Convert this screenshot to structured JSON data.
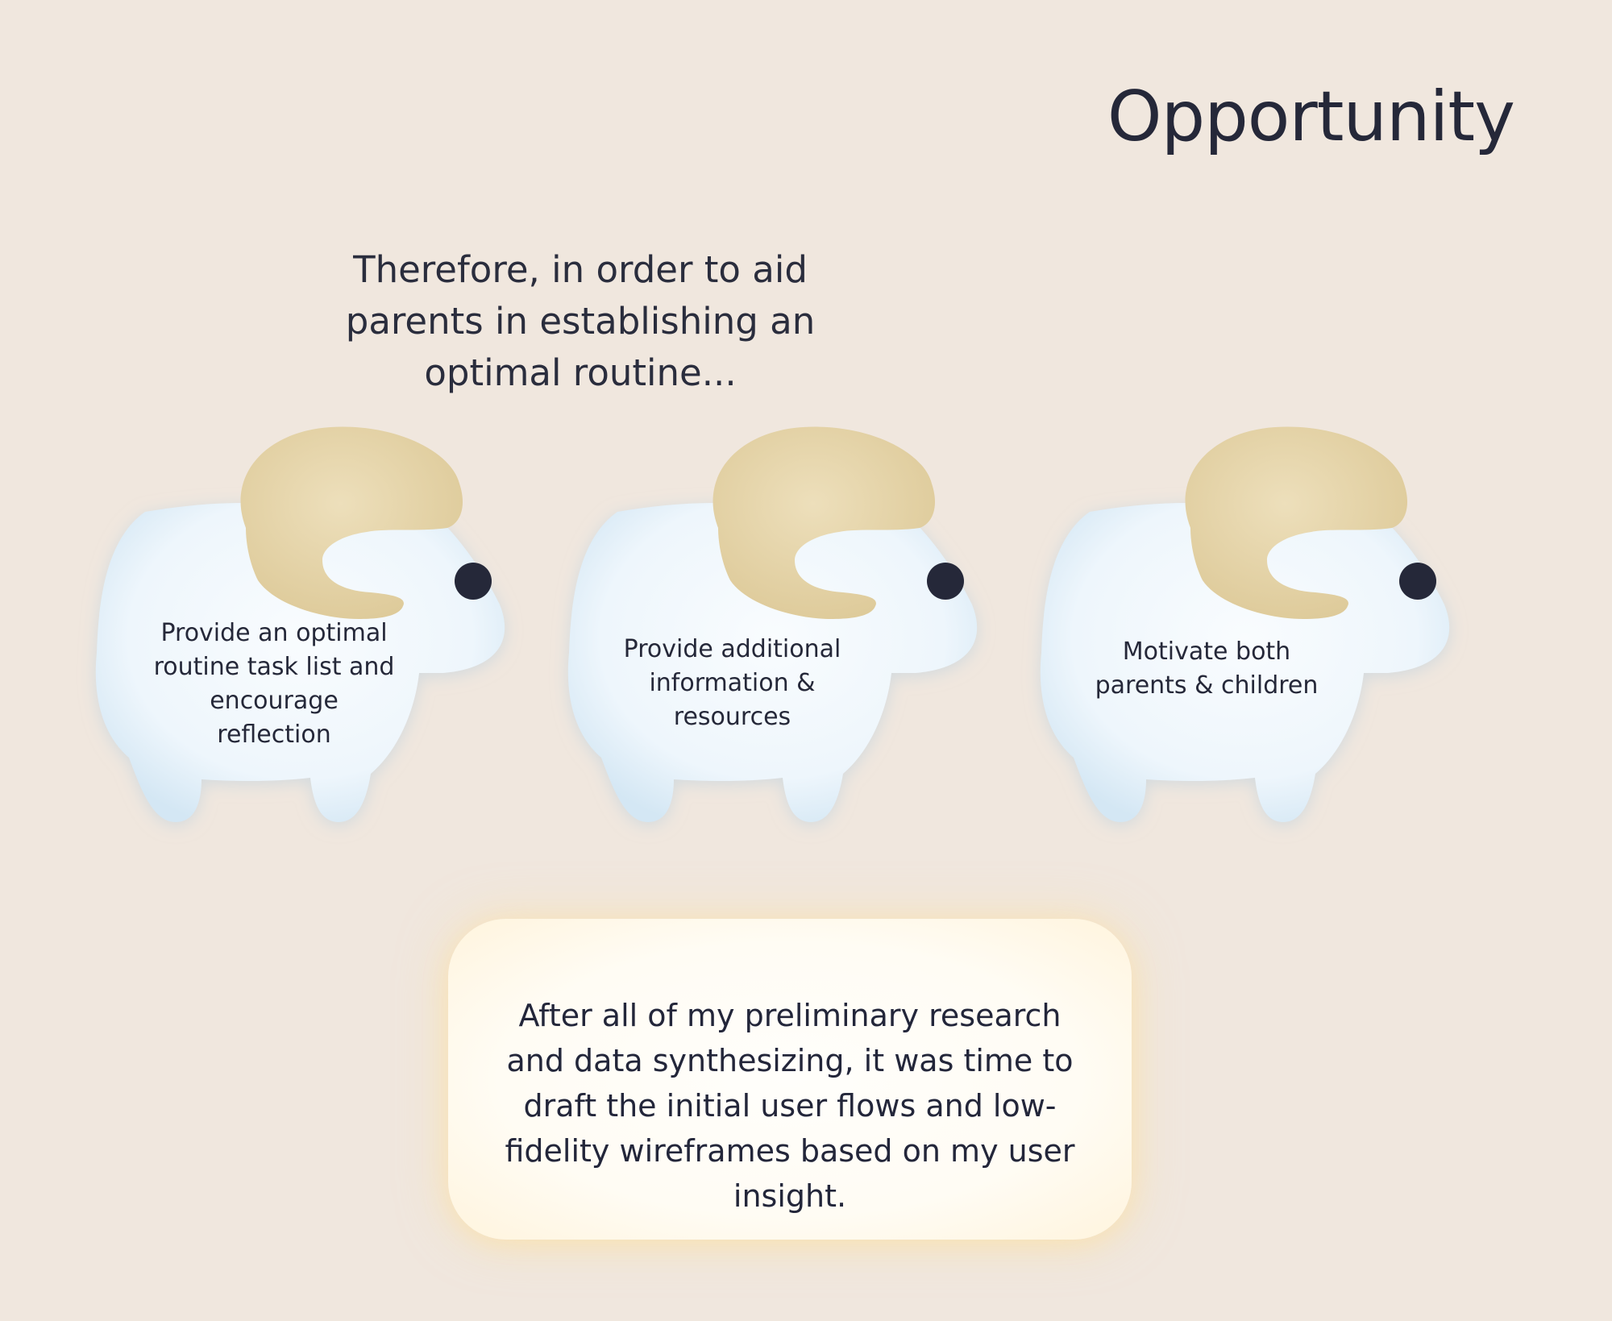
{
  "page": {
    "title": "Opportunity",
    "subtitle": "Therefore, in order to aid parents in establishing an optimal routine..."
  },
  "opportunities": [
    {
      "label": "Provide an optimal routine task list and encourage reflection",
      "icon": "ram-icon"
    },
    {
      "label": "Provide additional information & resources",
      "icon": "ram-icon"
    },
    {
      "label": "Motivate both parents & children",
      "icon": "ram-icon"
    }
  ],
  "note": {
    "text": "After all of my preliminary research and data synthesizing, it was time to draft the initial user flows and low-fidelity wireframes based on my user insight."
  },
  "colors": {
    "background": "#f0e7de",
    "text": "#252839",
    "ram_body": "#f3f9fd",
    "ram_body_edge": "#cfe4f2",
    "ram_horn": "#e9d9b0",
    "ram_eye": "#252839",
    "note_background": "#fffcf4"
  }
}
